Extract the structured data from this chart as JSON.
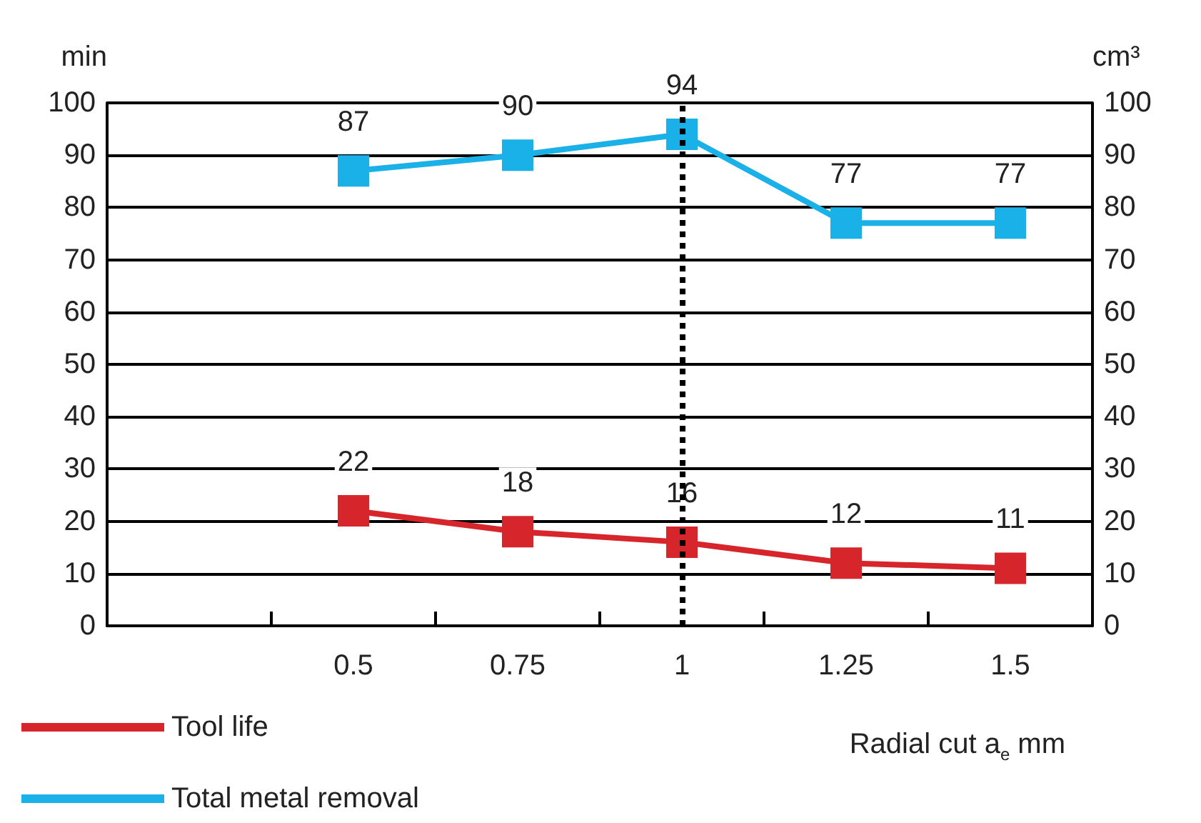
{
  "chart_data": {
    "type": "line",
    "xlabel": "Radial cut a$_{e}$ mm",
    "ylabel": "min",
    "y2label": "cm³",
    "categories": [
      null,
      "0.5",
      "0.75",
      "1",
      "1.25",
      "1.5"
    ],
    "series": [
      {
        "name": "Tool life",
        "color": "#d7262b",
        "values": [
          null,
          22,
          18,
          16,
          12,
          11
        ]
      },
      {
        "name": "Total metal removal",
        "color": "#1ab0e8",
        "axis": "y2",
        "values": [
          null,
          87,
          90,
          94,
          77,
          77
        ]
      }
    ],
    "ylim": [
      0,
      100
    ],
    "yticks": [
      0,
      10,
      20,
      30,
      40,
      50,
      60,
      70,
      80,
      90,
      100
    ],
    "y2lim": [
      0,
      100
    ],
    "y2ticks": [
      0,
      10,
      20,
      30,
      40,
      50,
      60,
      70,
      80,
      90,
      100
    ],
    "ref_lines": [
      {
        "axis": "x",
        "value": "1",
        "color": "#000000",
        "line_style": "dotted"
      }
    ],
    "data_labels": true,
    "grid": "y",
    "legend": "bottom left",
    "marker": "square",
    "line_style": "solid"
  }
}
